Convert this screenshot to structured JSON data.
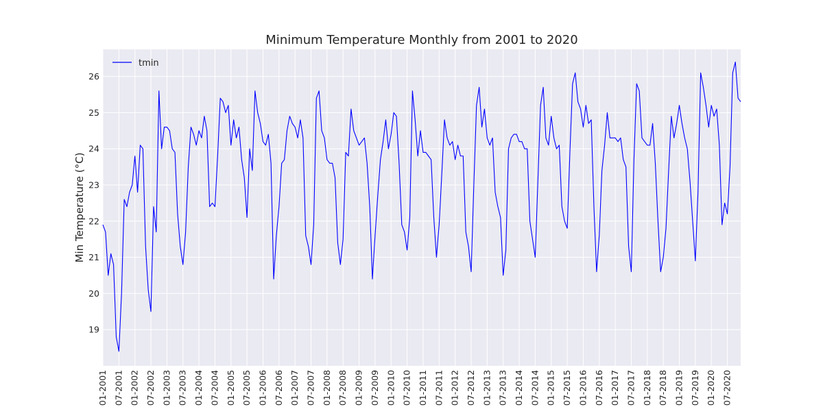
{
  "chart_data": {
    "type": "line",
    "title": "Minimum Temperature Monthly from 2001 to 2020",
    "xlabel": "",
    "ylabel": "Min Temperature (°C)",
    "ylim": [
      18.0,
      26.75
    ],
    "yticks": [
      19,
      20,
      21,
      22,
      23,
      24,
      25,
      26
    ],
    "xtick_labels": [
      "01-2001",
      "07-2001",
      "01-2002",
      "07-2002",
      "01-2003",
      "07-2003",
      "01-2004",
      "07-2004",
      "01-2005",
      "07-2005",
      "01-2006",
      "07-2006",
      "01-2007",
      "07-2007",
      "01-2008",
      "07-2008",
      "01-2009",
      "07-2009",
      "01-2010",
      "07-2010",
      "01-2011",
      "07-2011",
      "01-2012",
      "07-2012",
      "01-2013",
      "07-2013",
      "01-2014",
      "07-2014",
      "01-2015",
      "07-2015",
      "01-2016",
      "07-2016",
      "01-2017",
      "07-2017",
      "01-2018",
      "07-2018",
      "01-2019",
      "07-2019",
      "01-2020",
      "07-2020"
    ],
    "grid": true,
    "legend_position": "top-left",
    "series": [
      {
        "name": "tmin",
        "color": "#0000ff",
        "x": [
          "2001-01",
          "2001-02",
          "2001-03",
          "2001-04",
          "2001-05",
          "2001-06",
          "2001-07",
          "2001-08",
          "2001-09",
          "2001-10",
          "2001-11",
          "2001-12",
          "2002-01",
          "2002-02",
          "2002-03",
          "2002-04",
          "2002-05",
          "2002-06",
          "2002-07",
          "2002-08",
          "2002-09",
          "2002-10",
          "2002-11",
          "2002-12",
          "2003-01",
          "2003-02",
          "2003-03",
          "2003-04",
          "2003-05",
          "2003-06",
          "2003-07",
          "2003-08",
          "2003-09",
          "2003-10",
          "2003-11",
          "2003-12",
          "2004-01",
          "2004-02",
          "2004-03",
          "2004-04",
          "2004-05",
          "2004-06",
          "2004-07",
          "2004-08",
          "2004-09",
          "2004-10",
          "2004-11",
          "2004-12",
          "2005-01",
          "2005-02",
          "2005-03",
          "2005-04",
          "2005-05",
          "2005-06",
          "2005-07",
          "2005-08",
          "2005-09",
          "2005-10",
          "2005-11",
          "2005-12",
          "2006-01",
          "2006-02",
          "2006-03",
          "2006-04",
          "2006-05",
          "2006-06",
          "2006-07",
          "2006-08",
          "2006-09",
          "2006-10",
          "2006-11",
          "2006-12",
          "2007-01",
          "2007-02",
          "2007-03",
          "2007-04",
          "2007-05",
          "2007-06",
          "2007-07",
          "2007-08",
          "2007-09",
          "2007-10",
          "2007-11",
          "2007-12",
          "2008-01",
          "2008-02",
          "2008-03",
          "2008-04",
          "2008-05",
          "2008-06",
          "2008-07",
          "2008-08",
          "2008-09",
          "2008-10",
          "2008-11",
          "2008-12",
          "2009-01",
          "2009-02",
          "2009-03",
          "2009-04",
          "2009-05",
          "2009-06",
          "2009-07",
          "2009-08",
          "2009-09",
          "2009-10",
          "2009-11",
          "2009-12",
          "2010-01",
          "2010-02",
          "2010-03",
          "2010-04",
          "2010-05",
          "2010-06",
          "2010-07",
          "2010-08",
          "2010-09",
          "2010-10",
          "2010-11",
          "2010-12",
          "2011-01",
          "2011-02",
          "2011-03",
          "2011-04",
          "2011-05",
          "2011-06",
          "2011-07",
          "2011-08",
          "2011-09",
          "2011-10",
          "2011-11",
          "2011-12",
          "2012-01",
          "2012-02",
          "2012-03",
          "2012-04",
          "2012-05",
          "2012-06",
          "2012-07",
          "2012-08",
          "2012-09",
          "2012-10",
          "2012-11",
          "2012-12",
          "2013-01",
          "2013-02",
          "2013-03",
          "2013-04",
          "2013-05",
          "2013-06",
          "2013-07",
          "2013-08",
          "2013-09",
          "2013-10",
          "2013-11",
          "2013-12",
          "2014-01",
          "2014-02",
          "2014-03",
          "2014-04",
          "2014-05",
          "2014-06",
          "2014-07",
          "2014-08",
          "2014-09",
          "2014-10",
          "2014-11",
          "2014-12",
          "2015-01",
          "2015-02",
          "2015-03",
          "2015-04",
          "2015-05",
          "2015-06",
          "2015-07",
          "2015-08",
          "2015-09",
          "2015-10",
          "2015-11",
          "2015-12",
          "2016-01",
          "2016-02",
          "2016-03",
          "2016-04",
          "2016-05",
          "2016-06",
          "2016-07",
          "2016-08",
          "2016-09",
          "2016-10",
          "2016-11",
          "2016-12",
          "2017-01",
          "2017-02",
          "2017-03",
          "2017-04",
          "2017-05",
          "2017-06",
          "2017-07",
          "2017-08",
          "2017-09",
          "2017-10",
          "2017-11",
          "2017-12",
          "2018-01",
          "2018-02",
          "2018-03",
          "2018-04",
          "2018-05",
          "2018-06",
          "2018-07",
          "2018-08",
          "2018-09",
          "2018-10",
          "2018-11",
          "2018-12",
          "2019-01",
          "2019-02",
          "2019-03",
          "2019-04",
          "2019-05",
          "2019-06",
          "2019-07",
          "2019-08",
          "2019-09",
          "2019-10",
          "2019-11",
          "2019-12",
          "2020-01",
          "2020-02",
          "2020-03",
          "2020-04",
          "2020-05",
          "2020-06",
          "2020-07",
          "2020-08",
          "2020-09",
          "2020-10",
          "2020-11",
          "2020-12"
        ],
        "values": [
          21.9,
          21.7,
          20.5,
          21.1,
          20.8,
          18.8,
          18.4,
          20.0,
          22.6,
          22.4,
          22.8,
          23.0,
          23.8,
          22.8,
          24.1,
          24.0,
          21.3,
          20.1,
          19.5,
          22.4,
          21.7,
          25.6,
          24.0,
          24.6,
          24.6,
          24.5,
          24.0,
          23.9,
          22.2,
          21.3,
          20.8,
          21.7,
          23.5,
          24.6,
          24.4,
          24.1,
          24.5,
          24.3,
          24.9,
          24.5,
          22.4,
          22.5,
          22.4,
          23.8,
          25.4,
          25.3,
          25.0,
          25.2,
          24.1,
          24.8,
          24.3,
          24.6,
          23.7,
          23.2,
          22.1,
          24.0,
          23.4,
          25.6,
          25.0,
          24.7,
          24.2,
          24.1,
          24.4,
          23.6,
          20.4,
          21.6,
          22.4,
          23.6,
          23.7,
          24.5,
          24.9,
          24.7,
          24.6,
          24.3,
          24.8,
          24.3,
          21.6,
          21.3,
          20.8,
          21.9,
          25.4,
          25.6,
          24.5,
          24.3,
          23.7,
          23.6,
          23.6,
          23.2,
          21.4,
          20.8,
          21.5,
          23.9,
          23.8,
          25.1,
          24.5,
          24.3,
          24.1,
          24.2,
          24.3,
          23.6,
          22.4,
          20.4,
          21.6,
          22.7,
          23.7,
          24.2,
          24.8,
          24.0,
          24.4,
          25.0,
          24.9,
          23.6,
          21.9,
          21.7,
          21.2,
          22.1,
          25.6,
          24.8,
          23.8,
          24.5,
          23.9,
          23.9,
          23.8,
          23.7,
          22.1,
          21.0,
          21.9,
          23.3,
          24.8,
          24.3,
          24.1,
          24.2,
          23.7,
          24.1,
          23.8,
          23.8,
          21.7,
          21.3,
          20.6,
          23.0,
          25.2,
          25.7,
          24.6,
          25.1,
          24.3,
          24.1,
          24.3,
          22.8,
          22.4,
          22.1,
          20.5,
          21.2,
          24.0,
          24.3,
          24.4,
          24.4,
          24.2,
          24.2,
          24.0,
          24.0,
          22.0,
          21.5,
          21.0,
          23.1,
          25.2,
          25.7,
          24.3,
          24.1,
          24.9,
          24.3,
          24.0,
          24.1,
          22.4,
          22.0,
          21.8,
          23.9,
          25.8,
          26.1,
          25.3,
          25.1,
          24.6,
          25.2,
          24.7,
          24.8,
          22.4,
          20.6,
          21.6,
          23.4,
          24.1,
          25.0,
          24.3,
          24.3,
          24.3,
          24.2,
          24.3,
          23.7,
          23.5,
          21.3,
          20.6,
          23.7,
          25.8,
          25.6,
          24.3,
          24.2,
          24.1,
          24.1,
          24.7,
          23.6,
          22.0,
          20.6,
          21.0,
          21.8,
          23.4,
          24.9,
          24.3,
          24.7,
          25.2,
          24.7,
          24.3,
          24.0,
          23.1,
          22.0,
          20.9,
          22.8,
          26.1,
          25.7,
          25.2,
          24.6,
          25.2,
          24.9,
          25.1,
          24.1,
          21.9,
          22.5,
          22.2,
          23.5,
          26.1,
          26.4,
          25.4,
          25.3
        ]
      }
    ]
  }
}
